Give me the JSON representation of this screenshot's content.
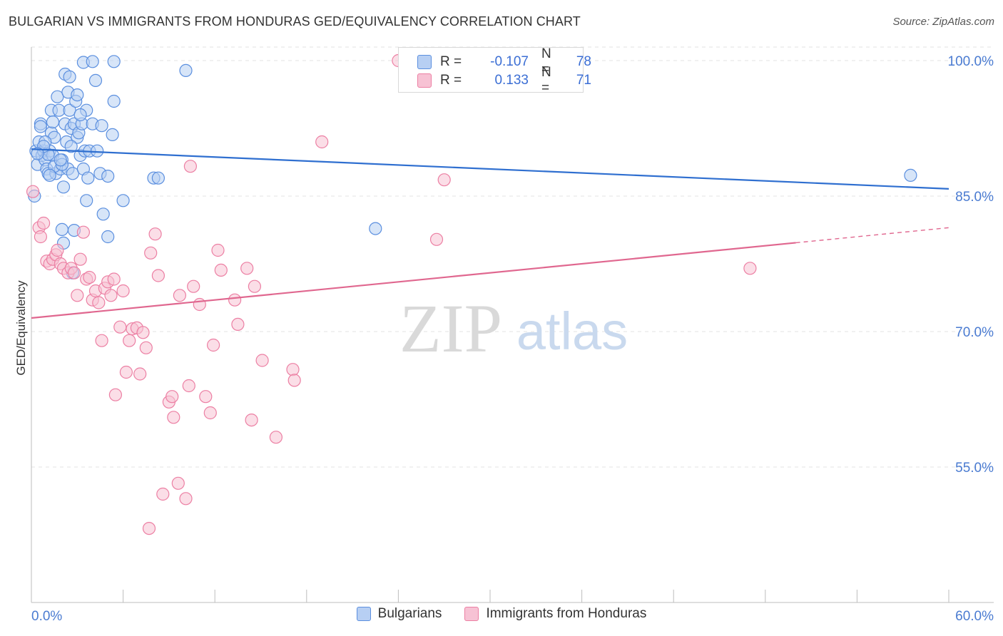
{
  "title": "BULGARIAN VS IMMIGRANTS FROM HONDURAS GED/EQUIVALENCY CORRELATION CHART",
  "source": "Source: ZipAtlas.com",
  "watermark": {
    "zip": "ZIP",
    "atlas": "atlas"
  },
  "colors": {
    "blue": "#5b8fdf",
    "blue_fill": "#b7cff3",
    "blue_line": "#2f6fd0",
    "pink": "#ec7fa3",
    "pink_fill": "#f7c2d4",
    "pink_line": "#e0678f",
    "tick_label": "#4a7bd1",
    "grid": "#e3e3e3"
  },
  "stats": {
    "rows": [
      {
        "r_label": "R = ",
        "r_value": "-0.107",
        "n_label": "N = ",
        "n_value": "78",
        "color": "blue"
      },
      {
        "r_label": "R = ",
        "r_value": "0.133",
        "n_label": "N = ",
        "n_value": "71",
        "color": "pink"
      }
    ]
  },
  "legend": {
    "items": [
      {
        "label": "Bulgarians",
        "color": "blue"
      },
      {
        "label": "Immigrants from Honduras",
        "color": "pink"
      }
    ]
  },
  "chart_data": {
    "type": "scatter",
    "title": "BULGARIAN VS IMMIGRANTS FROM HONDURAS GED/EQUIVALENCY CORRELATION CHART",
    "xlabel": "",
    "ylabel": "GED/Equivalency",
    "xlim": [
      0,
      60
    ],
    "ylim": [
      40,
      101.5
    ],
    "x_tick_labels": [
      {
        "value": 0,
        "label": "0.0%"
      },
      {
        "value": 60,
        "label": "60.0%"
      }
    ],
    "y_tick_labels": [
      {
        "value": 100,
        "label": "100.0%"
      },
      {
        "value": 85,
        "label": "85.0%"
      },
      {
        "value": 70,
        "label": "70.0%"
      },
      {
        "value": 55,
        "label": "55.0%"
      }
    ],
    "series": [
      {
        "name": "Bulgarians",
        "color": "blue",
        "r": -0.107,
        "n": 78,
        "trend": {
          "x0": 0,
          "y0": 90.2,
          "x1": 60,
          "y1": 85.8,
          "solid_to": 60
        },
        "points": [
          [
            0.2,
            85.0
          ],
          [
            0.3,
            90.0
          ],
          [
            0.4,
            88.5
          ],
          [
            0.5,
            91.0
          ],
          [
            0.6,
            93.0
          ],
          [
            0.7,
            89.5
          ],
          [
            0.8,
            90.0
          ],
          [
            0.9,
            89.0
          ],
          [
            1.0,
            88.0
          ],
          [
            1.1,
            87.5
          ],
          [
            1.2,
            90.0
          ],
          [
            1.3,
            92.0
          ],
          [
            1.3,
            94.5
          ],
          [
            1.4,
            89.5
          ],
          [
            1.5,
            91.5
          ],
          [
            1.6,
            87.5
          ],
          [
            1.7,
            96.0
          ],
          [
            1.8,
            94.5
          ],
          [
            1.9,
            88.0
          ],
          [
            2.0,
            89.0
          ],
          [
            2.1,
            86.0
          ],
          [
            2.2,
            93.0
          ],
          [
            2.3,
            91.0
          ],
          [
            2.4,
            88.0
          ],
          [
            2.5,
            94.5
          ],
          [
            2.6,
            92.5
          ],
          [
            2.7,
            87.5
          ],
          [
            2.8,
            93.0
          ],
          [
            2.9,
            95.5
          ],
          [
            3.0,
            91.5
          ],
          [
            3.1,
            92.0
          ],
          [
            3.2,
            89.5
          ],
          [
            3.3,
            93.0
          ],
          [
            3.4,
            88.0
          ],
          [
            3.5,
            90.0
          ],
          [
            3.6,
            94.5
          ],
          [
            3.7,
            87.0
          ],
          [
            3.8,
            90.0
          ],
          [
            4.0,
            93.0
          ],
          [
            4.2,
            97.8
          ],
          [
            2.4,
            96.5
          ],
          [
            2.2,
            98.5
          ],
          [
            2.5,
            98.2
          ],
          [
            3.4,
            99.8
          ],
          [
            4.0,
            99.9
          ],
          [
            5.4,
            99.9
          ],
          [
            5.4,
            95.5
          ],
          [
            5.3,
            91.8
          ],
          [
            4.5,
            87.5
          ],
          [
            5.0,
            87.2
          ],
          [
            3.6,
            84.5
          ],
          [
            4.7,
            83.0
          ],
          [
            5.0,
            80.5
          ],
          [
            2.0,
            81.3
          ],
          [
            2.8,
            81.2
          ],
          [
            2.1,
            79.8
          ],
          [
            2.7,
            76.5
          ],
          [
            6.0,
            84.5
          ],
          [
            8.0,
            87.0
          ],
          [
            8.3,
            87.0
          ],
          [
            10.1,
            98.9
          ],
          [
            22.5,
            81.4
          ],
          [
            57.5,
            87.3
          ],
          [
            0.6,
            92.7
          ],
          [
            0.9,
            91.0
          ],
          [
            1.5,
            88.3
          ],
          [
            3.2,
            94.0
          ],
          [
            4.6,
            92.8
          ],
          [
            1.1,
            89.6
          ],
          [
            2.0,
            88.5
          ],
          [
            1.4,
            93.2
          ],
          [
            3.0,
            96.2
          ],
          [
            0.8,
            90.5
          ],
          [
            1.9,
            89.0
          ],
          [
            2.6,
            90.5
          ],
          [
            1.2,
            87.3
          ],
          [
            4.3,
            90.0
          ],
          [
            0.4,
            89.7
          ]
        ]
      },
      {
        "name": "Immigrants from Honduras",
        "color": "pink",
        "r": 0.133,
        "n": 71,
        "trend": {
          "x0": 0,
          "y0": 71.5,
          "x1": 60,
          "y1": 81.5,
          "solid_to": 50.0
        },
        "points": [
          [
            0.1,
            85.5
          ],
          [
            0.5,
            81.5
          ],
          [
            0.6,
            80.5
          ],
          [
            0.8,
            82.0
          ],
          [
            1.0,
            77.8
          ],
          [
            1.2,
            77.5
          ],
          [
            1.4,
            78.0
          ],
          [
            1.6,
            78.5
          ],
          [
            1.7,
            79.0
          ],
          [
            1.9,
            77.5
          ],
          [
            2.1,
            77.0
          ],
          [
            2.4,
            76.5
          ],
          [
            2.6,
            77.0
          ],
          [
            2.8,
            76.5
          ],
          [
            3.0,
            74.0
          ],
          [
            3.2,
            78.0
          ],
          [
            3.4,
            81.0
          ],
          [
            3.6,
            75.8
          ],
          [
            3.8,
            76.0
          ],
          [
            4.0,
            73.5
          ],
          [
            4.2,
            74.5
          ],
          [
            4.4,
            73.2
          ],
          [
            4.6,
            69.0
          ],
          [
            4.8,
            74.8
          ],
          [
            5.0,
            75.5
          ],
          [
            5.2,
            74.0
          ],
          [
            5.4,
            75.8
          ],
          [
            5.5,
            63.0
          ],
          [
            5.8,
            70.5
          ],
          [
            6.0,
            74.5
          ],
          [
            6.2,
            65.5
          ],
          [
            6.4,
            69.0
          ],
          [
            6.6,
            70.3
          ],
          [
            6.9,
            70.4
          ],
          [
            7.1,
            65.3
          ],
          [
            7.3,
            69.9
          ],
          [
            7.5,
            68.2
          ],
          [
            7.7,
            48.2
          ],
          [
            7.8,
            78.7
          ],
          [
            8.1,
            80.8
          ],
          [
            8.3,
            76.2
          ],
          [
            8.6,
            52.0
          ],
          [
            9.0,
            62.2
          ],
          [
            9.2,
            62.8
          ],
          [
            9.3,
            60.5
          ],
          [
            9.6,
            53.2
          ],
          [
            9.7,
            74.0
          ],
          [
            10.1,
            51.5
          ],
          [
            10.3,
            64.0
          ],
          [
            10.6,
            75.0
          ],
          [
            11.0,
            73.0
          ],
          [
            11.4,
            62.8
          ],
          [
            11.7,
            61.0
          ],
          [
            11.9,
            68.5
          ],
          [
            12.2,
            79.0
          ],
          [
            12.4,
            76.8
          ],
          [
            13.3,
            73.5
          ],
          [
            13.5,
            70.8
          ],
          [
            14.1,
            77.0
          ],
          [
            14.4,
            60.2
          ],
          [
            14.6,
            75.0
          ],
          [
            15.1,
            66.8
          ],
          [
            16.0,
            58.3
          ],
          [
            17.1,
            65.8
          ],
          [
            17.2,
            64.6
          ],
          [
            10.4,
            88.3
          ],
          [
            19.0,
            91.0
          ],
          [
            24.0,
            100.0
          ],
          [
            26.5,
            80.2
          ],
          [
            27.0,
            86.8
          ],
          [
            47.0,
            77.0
          ]
        ]
      }
    ]
  }
}
